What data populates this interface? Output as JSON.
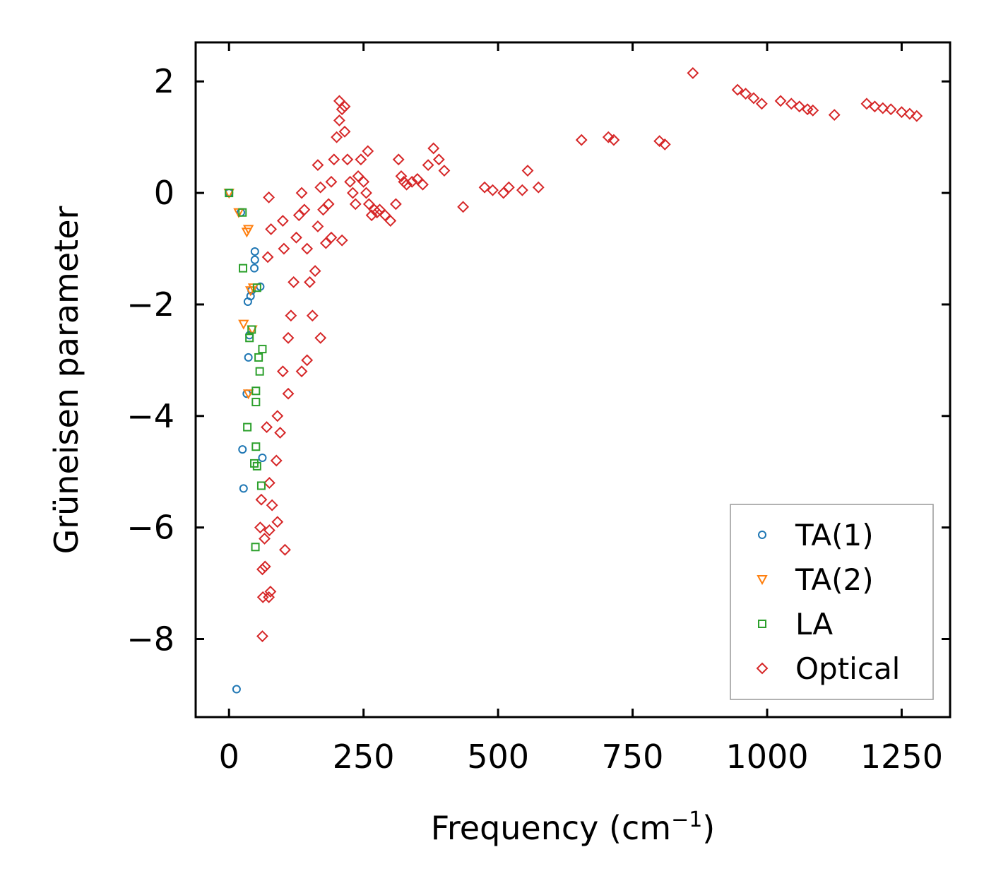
{
  "chart_data": {
    "type": "scatter",
    "title": "",
    "xlabel": "Frequency (cm",
    "xlabel_sup": "−1",
    "xlabel_close": ")",
    "ylabel": "Grüneisen parameter",
    "xlim": [
      -62,
      1340
    ],
    "ylim": [
      -9.4,
      2.7
    ],
    "xticks": [
      0,
      250,
      500,
      750,
      1000,
      1250
    ],
    "xtick_labels": [
      "0",
      "250",
      "500",
      "750",
      "1000",
      "1250"
    ],
    "yticks": [
      2,
      0,
      -2,
      -4,
      -6,
      -8
    ],
    "ytick_labels": [
      "2",
      "0",
      "−2",
      "−4",
      "−6",
      "−8"
    ],
    "grid": false,
    "legend_position": "lower-right",
    "series": [
      {
        "name": "TA(1)",
        "marker": "circle",
        "color": "#1f77b4",
        "points": [
          [
            0,
            0
          ],
          [
            22,
            -0.35
          ],
          [
            48,
            -1.05
          ],
          [
            48,
            -1.2
          ],
          [
            47,
            -1.35
          ],
          [
            42,
            -1.75
          ],
          [
            40,
            -1.85
          ],
          [
            35,
            -1.95
          ],
          [
            38,
            -2.55
          ],
          [
            36,
            -2.95
          ],
          [
            33,
            -3.6
          ],
          [
            25,
            -4.6
          ],
          [
            27,
            -5.3
          ],
          [
            14,
            -8.9
          ],
          [
            58,
            -1.68
          ],
          [
            62,
            -4.75
          ]
        ]
      },
      {
        "name": "TA(2)",
        "marker": "triangle-down",
        "color": "#ff7f0e",
        "points": [
          [
            0,
            0
          ],
          [
            18,
            -0.35
          ],
          [
            33,
            -0.7
          ],
          [
            36,
            -0.65
          ],
          [
            40,
            -1.75
          ],
          [
            45,
            -1.7
          ],
          [
            27,
            -2.35
          ],
          [
            43,
            -2.45
          ],
          [
            36,
            -3.6
          ]
        ]
      },
      {
        "name": "LA",
        "marker": "square",
        "color": "#2ca02c",
        "points": [
          [
            0,
            0
          ],
          [
            25,
            -0.35
          ],
          [
            26,
            -1.35
          ],
          [
            52,
            -1.7
          ],
          [
            42,
            -2.45
          ],
          [
            38,
            -2.6
          ],
          [
            62,
            -2.8
          ],
          [
            55,
            -2.95
          ],
          [
            57,
            -3.2
          ],
          [
            50,
            -3.55
          ],
          [
            50,
            -3.75
          ],
          [
            34,
            -4.2
          ],
          [
            50,
            -4.55
          ],
          [
            47,
            -4.85
          ],
          [
            52,
            -4.9
          ],
          [
            60,
            -5.25
          ],
          [
            49,
            -6.35
          ]
        ]
      },
      {
        "name": "Optical",
        "marker": "diamond",
        "color": "#d62728",
        "points": [
          [
            74,
            -0.08
          ],
          [
            78,
            -0.65
          ],
          [
            72,
            -1.15
          ],
          [
            62,
            -7.95
          ],
          [
            63,
            -7.25
          ],
          [
            74,
            -7.25
          ],
          [
            77,
            -7.15
          ],
          [
            104,
            -6.4
          ],
          [
            62,
            -6.75
          ],
          [
            67,
            -6.7
          ],
          [
            66,
            -6.2
          ],
          [
            58,
            -6.0
          ],
          [
            75,
            -6.05
          ],
          [
            90,
            -5.9
          ],
          [
            100,
            -0.5
          ],
          [
            102,
            -1.0
          ],
          [
            60,
            -5.5
          ],
          [
            80,
            -5.6
          ],
          [
            70,
            -4.2
          ],
          [
            90,
            -4.0
          ],
          [
            100,
            -3.2
          ],
          [
            110,
            -2.6
          ],
          [
            115,
            -2.2
          ],
          [
            120,
            -1.6
          ],
          [
            125,
            -0.8
          ],
          [
            130,
            -0.4
          ],
          [
            135,
            0.0
          ],
          [
            140,
            -0.3
          ],
          [
            145,
            -1.0
          ],
          [
            150,
            -1.6
          ],
          [
            155,
            -2.2
          ],
          [
            160,
            -1.4
          ],
          [
            165,
            -0.6
          ],
          [
            170,
            0.1
          ],
          [
            175,
            -0.3
          ],
          [
            180,
            -0.9
          ],
          [
            185,
            -0.2
          ],
          [
            190,
            0.2
          ],
          [
            195,
            0.6
          ],
          [
            200,
            1.0
          ],
          [
            205,
            1.3
          ],
          [
            210,
            1.5
          ],
          [
            215,
            1.1
          ],
          [
            220,
            0.6
          ],
          [
            225,
            0.2
          ],
          [
            230,
            0.0
          ],
          [
            235,
            -0.2
          ],
          [
            240,
            0.3
          ],
          [
            245,
            0.6
          ],
          [
            250,
            0.2
          ],
          [
            255,
            0.0
          ],
          [
            260,
            -0.2
          ],
          [
            265,
            -0.4
          ],
          [
            270,
            -0.3
          ],
          [
            275,
            -0.35
          ],
          [
            280,
            -0.3
          ],
          [
            290,
            -0.4
          ],
          [
            300,
            -0.5
          ],
          [
            310,
            -0.2
          ],
          [
            315,
            0.6
          ],
          [
            320,
            0.3
          ],
          [
            325,
            0.2
          ],
          [
            330,
            0.15
          ],
          [
            340,
            0.2
          ],
          [
            350,
            0.25
          ],
          [
            360,
            0.15
          ],
          [
            370,
            0.5
          ],
          [
            380,
            0.8
          ],
          [
            390,
            0.6
          ],
          [
            400,
            0.4
          ],
          [
            435,
            -0.25
          ],
          [
            475,
            0.1
          ],
          [
            490,
            0.05
          ],
          [
            510,
            0.0
          ],
          [
            520,
            0.1
          ],
          [
            545,
            0.05
          ],
          [
            555,
            0.4
          ],
          [
            575,
            0.1
          ],
          [
            655,
            0.95
          ],
          [
            705,
            1.0
          ],
          [
            715,
            0.95
          ],
          [
            800,
            0.93
          ],
          [
            810,
            0.87
          ],
          [
            862,
            2.15
          ],
          [
            945,
            1.85
          ],
          [
            960,
            1.78
          ],
          [
            975,
            1.7
          ],
          [
            990,
            1.6
          ],
          [
            1025,
            1.65
          ],
          [
            1045,
            1.6
          ],
          [
            1060,
            1.55
          ],
          [
            1075,
            1.5
          ],
          [
            1085,
            1.48
          ],
          [
            1125,
            1.4
          ],
          [
            1185,
            1.6
          ],
          [
            1200,
            1.55
          ],
          [
            1215,
            1.52
          ],
          [
            1230,
            1.5
          ],
          [
            1250,
            1.45
          ],
          [
            1265,
            1.42
          ],
          [
            1278,
            1.38
          ],
          [
            205,
            1.65
          ],
          [
            215,
            1.55
          ],
          [
            258,
            0.75
          ],
          [
            165,
            0.5
          ],
          [
            190,
            -0.8
          ],
          [
            210,
            -0.85
          ],
          [
            170,
            -2.6
          ],
          [
            135,
            -3.2
          ],
          [
            145,
            -3.0
          ],
          [
            88,
            -4.8
          ],
          [
            75,
            -5.2
          ],
          [
            95,
            -4.3
          ],
          [
            110,
            -3.6
          ]
        ]
      }
    ]
  }
}
